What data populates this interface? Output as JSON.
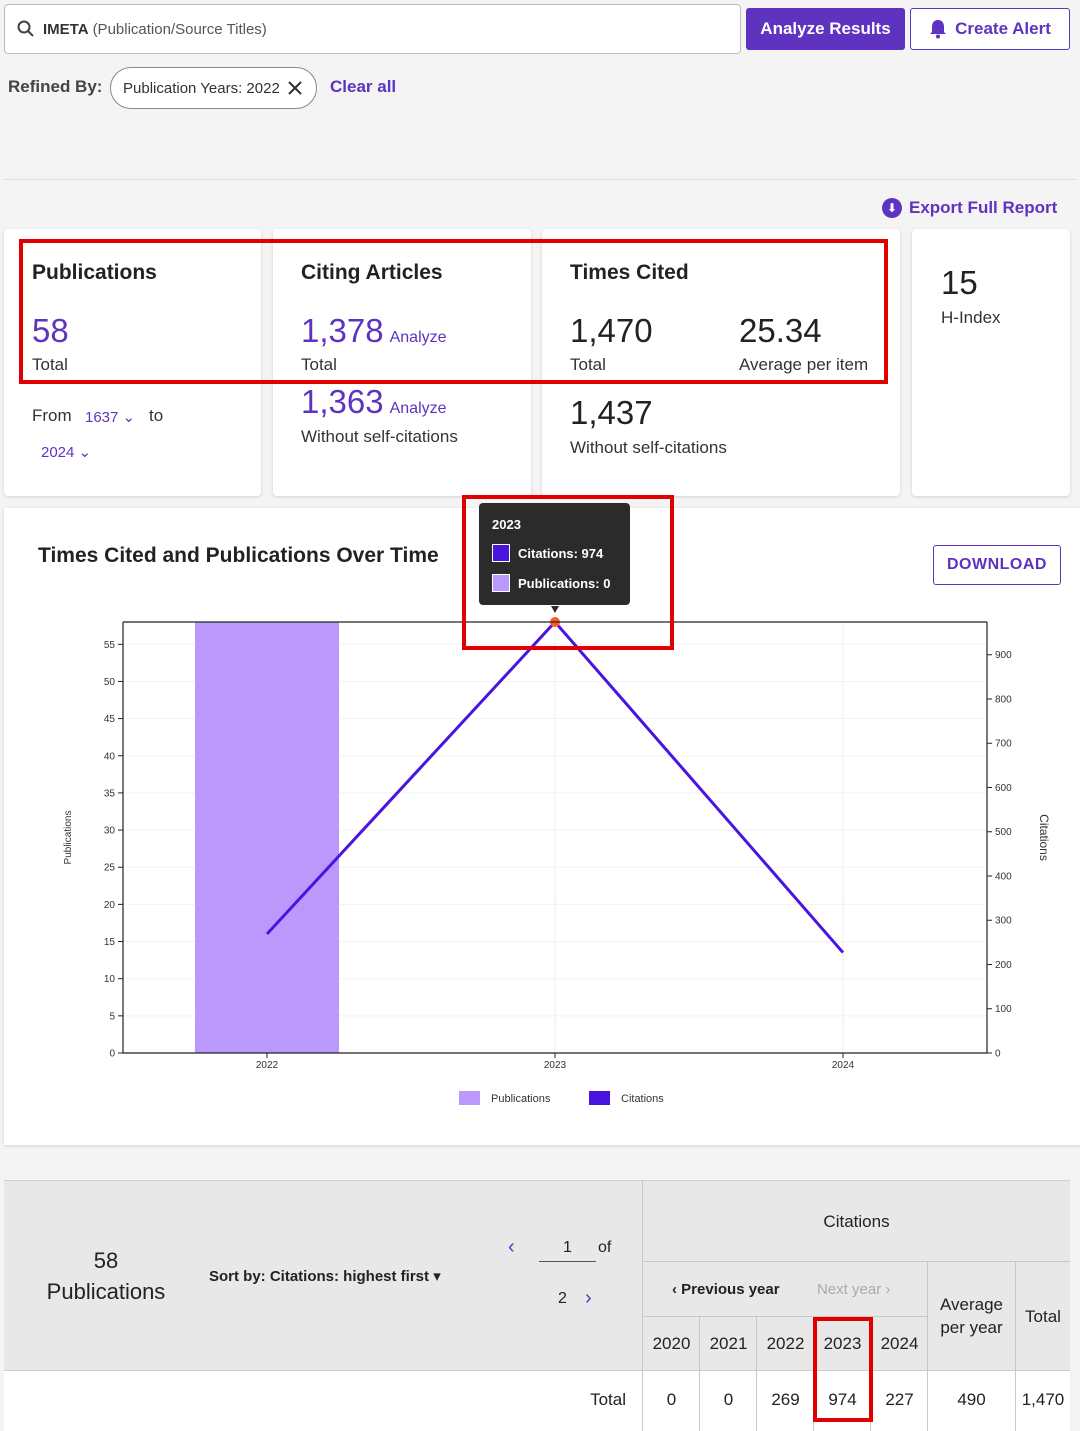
{
  "search": {
    "query": "IMETA",
    "qualifier": "(Publication/Source Titles)"
  },
  "buttons": {
    "analyze": "Analyze Results",
    "alert": "Create Alert",
    "download": "DOWNLOAD"
  },
  "refine": {
    "label": "Refined By:",
    "chip": "Publication Years: 2022",
    "clear": "Clear all"
  },
  "export": "Export Full Report",
  "metrics": {
    "publications": {
      "title": "Publications",
      "value": "58",
      "caption": "Total",
      "from_label": "From",
      "from_value": "1637",
      "to_label": "to",
      "to_value": "2024"
    },
    "citing": {
      "title": "Citing Articles",
      "value": "1,378",
      "analyze": "Analyze",
      "caption": "Total",
      "value2": "1,363",
      "analyze2": "Analyze",
      "caption2": "Without self-citations"
    },
    "times_cited": {
      "title": "Times Cited",
      "value": "1,470",
      "caption": "Total",
      "avg": "25.34",
      "avg_caption": "Average per item",
      "value2": "1,437",
      "caption2": "Without self-citations"
    },
    "hindex": {
      "value": "15",
      "caption": "H-Index"
    }
  },
  "chart_data": {
    "type": "bar",
    "title": "Times Cited and Publications Over Time",
    "categories": [
      "2022",
      "2023",
      "2024"
    ],
    "series": [
      {
        "name": "Publications",
        "type": "bar",
        "axis": "left",
        "values": [
          58,
          0,
          0
        ],
        "color": "#bb99fc"
      },
      {
        "name": "Citations",
        "type": "line",
        "axis": "right",
        "values": [
          269,
          974,
          227
        ],
        "color": "#4a14e0"
      }
    ],
    "ylabel": "Publications",
    "y2label": "Citations",
    "ylim": [
      0,
      58
    ],
    "y2lim": [
      0,
      974
    ],
    "yticks": [
      0,
      5,
      10,
      15,
      20,
      25,
      30,
      35,
      40,
      45,
      50,
      55
    ],
    "y2ticks": [
      0,
      100,
      200,
      300,
      400,
      500,
      600,
      700,
      800,
      900
    ],
    "legend": "bottom",
    "tooltip": {
      "year": "2023",
      "citations": "Citations: 974",
      "publications": "Publications: 0"
    }
  },
  "table": {
    "count": "58",
    "count_label": "Publications",
    "sort": "Sort by: Citations: highest first",
    "page": "1",
    "of": "of",
    "pages": "2",
    "citations_header": "Citations",
    "prev_year": "Previous year",
    "next_year": "Next year",
    "years": [
      "2020",
      "2021",
      "2022",
      "2023",
      "2024"
    ],
    "avg_header_1": "Average",
    "avg_header_2": "per year",
    "total_header": "Total",
    "row_label": "Total",
    "row_values": [
      "0",
      "0",
      "269",
      "974",
      "227"
    ],
    "row_avg": "490",
    "row_total": "1,470"
  },
  "colors": {
    "accent": "#5e33bf",
    "bar": "#bb99fc",
    "line": "#4a14e0",
    "highlight": "#e00000"
  }
}
